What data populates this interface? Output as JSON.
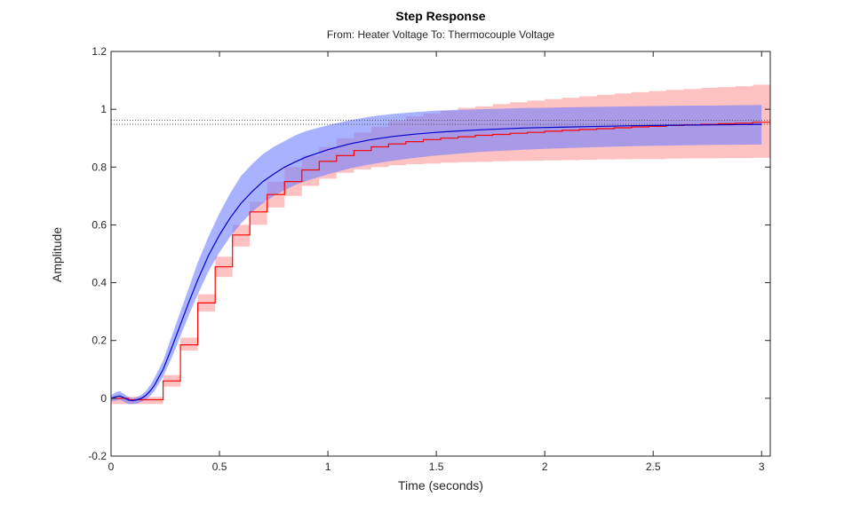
{
  "chart_data": {
    "type": "line",
    "title": "Step Response",
    "subtitle": "From: Heater Voltage  To: Thermocouple Voltage",
    "xlabel": "Time (seconds)",
    "ylabel": "Amplitude",
    "xlim": [
      0,
      3.04
    ],
    "ylim": [
      -0.2,
      1.2
    ],
    "xticks": [
      "0",
      "0.5",
      "1",
      "1.5",
      "2",
      "2.5",
      "3"
    ],
    "xtick_values": [
      0,
      0.5,
      1,
      1.5,
      2,
      2.5,
      3
    ],
    "yticks": [
      "-0.2",
      "0",
      "0.2",
      "0.4",
      "0.6",
      "0.8",
      "1",
      "1.2"
    ],
    "ytick_values": [
      -0.2,
      0,
      0.2,
      0.4,
      0.6,
      0.8,
      1,
      1.2
    ],
    "grid": false,
    "steady_state_lines": [
      0.948,
      0.962
    ],
    "series": [
      {
        "color": "#ff0000",
        "band_color": "#ff9999",
        "style": "stairs",
        "x": [
          0,
          0.08,
          0.16,
          0.24,
          0.32,
          0.4,
          0.48,
          0.56,
          0.64,
          0.72,
          0.8,
          0.88,
          0.96,
          1.04,
          1.12,
          1.2,
          1.28,
          1.36,
          1.44,
          1.52,
          1.6,
          1.68,
          1.76,
          1.84,
          1.92,
          2.0,
          2.08,
          2.16,
          2.24,
          2.32,
          2.4,
          2.48,
          2.56,
          2.64,
          2.72,
          2.8,
          2.88,
          2.96,
          3.04
        ],
        "values": [
          0,
          -0.005,
          -0.005,
          0.06,
          0.185,
          0.33,
          0.455,
          0.565,
          0.645,
          0.705,
          0.75,
          0.79,
          0.82,
          0.84,
          0.857,
          0.87,
          0.88,
          0.888,
          0.895,
          0.9,
          0.905,
          0.91,
          0.913,
          0.917,
          0.92,
          0.924,
          0.927,
          0.93,
          0.933,
          0.936,
          0.939,
          0.941,
          0.944,
          0.946,
          0.948,
          0.95,
          0.952,
          0.955,
          0.955
        ],
        "upper": [
          0,
          0.005,
          0.005,
          0.08,
          0.21,
          0.36,
          0.49,
          0.6,
          0.68,
          0.75,
          0.8,
          0.84,
          0.87,
          0.9,
          0.92,
          0.94,
          0.96,
          0.975,
          0.985,
          0.995,
          1.005,
          1.01,
          1.018,
          1.024,
          1.03,
          1.035,
          1.04,
          1.045,
          1.05,
          1.055,
          1.059,
          1.063,
          1.067,
          1.07,
          1.074,
          1.077,
          1.08,
          1.085,
          1.085
        ],
        "lower": [
          -0.02,
          -0.02,
          -0.02,
          0.04,
          0.165,
          0.3,
          0.42,
          0.525,
          0.6,
          0.66,
          0.7,
          0.735,
          0.76,
          0.78,
          0.792,
          0.8,
          0.806,
          0.81,
          0.812,
          0.815,
          0.817,
          0.818,
          0.82,
          0.821,
          0.822,
          0.823,
          0.824,
          0.825,
          0.826,
          0.827,
          0.828,
          0.828,
          0.829,
          0.83,
          0.83,
          0.831,
          0.831,
          0.832,
          0.832
        ]
      },
      {
        "color": "#0000cc",
        "band_color": "#6f7fff",
        "style": "line",
        "x": [
          0,
          0.02,
          0.04,
          0.06,
          0.08,
          0.1,
          0.12,
          0.14,
          0.16,
          0.18,
          0.2,
          0.24,
          0.28,
          0.32,
          0.36,
          0.4,
          0.45,
          0.5,
          0.55,
          0.6,
          0.65,
          0.7,
          0.75,
          0.8,
          0.85,
          0.9,
          1.0,
          1.1,
          1.2,
          1.3,
          1.4,
          1.5,
          1.6,
          1.7,
          1.8,
          1.9,
          2.0,
          2.2,
          2.4,
          2.6,
          2.8,
          3.0
        ],
        "values": [
          0,
          0.005,
          0.008,
          0.002,
          -0.006,
          -0.008,
          -0.005,
          0.0,
          0.01,
          0.025,
          0.045,
          0.1,
          0.175,
          0.255,
          0.335,
          0.41,
          0.495,
          0.565,
          0.625,
          0.675,
          0.715,
          0.75,
          0.776,
          0.8,
          0.818,
          0.835,
          0.86,
          0.88,
          0.895,
          0.906,
          0.914,
          0.92,
          0.925,
          0.929,
          0.932,
          0.935,
          0.937,
          0.94,
          0.943,
          0.945,
          0.946,
          0.948
        ],
        "upper": [
          0.01,
          0.02,
          0.025,
          0.015,
          0.005,
          0.0,
          0.005,
          0.012,
          0.025,
          0.045,
          0.07,
          0.13,
          0.215,
          0.3,
          0.385,
          0.47,
          0.56,
          0.64,
          0.71,
          0.77,
          0.81,
          0.845,
          0.87,
          0.89,
          0.91,
          0.925,
          0.945,
          0.962,
          0.975,
          0.984,
          0.99,
          0.995,
          0.998,
          1.0,
          1.002,
          1.004,
          1.005,
          1.008,
          1.01,
          1.012,
          1.013,
          1.015
        ],
        "lower": [
          -0.01,
          -0.008,
          -0.005,
          -0.012,
          -0.02,
          -0.02,
          -0.018,
          -0.012,
          -0.005,
          0.008,
          0.025,
          0.075,
          0.14,
          0.215,
          0.29,
          0.36,
          0.44,
          0.505,
          0.56,
          0.605,
          0.645,
          0.675,
          0.7,
          0.72,
          0.738,
          0.752,
          0.775,
          0.795,
          0.81,
          0.822,
          0.832,
          0.84,
          0.846,
          0.852,
          0.856,
          0.86,
          0.863,
          0.868,
          0.872,
          0.875,
          0.877,
          0.878
        ]
      }
    ]
  }
}
